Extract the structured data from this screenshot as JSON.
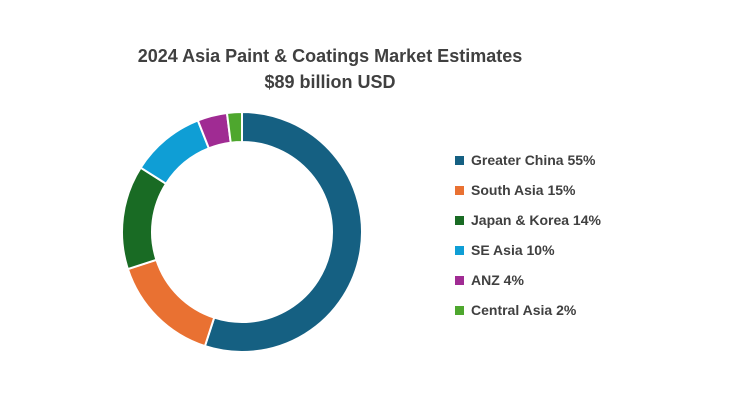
{
  "chart_data": {
    "type": "pie",
    "variant": "donut",
    "title": "2024 Asia Paint & Coatings Market Estimates",
    "subtitle": "$89 billion USD",
    "legend_position": "right",
    "slices": [
      {
        "label": "Greater China 55%",
        "name": "Greater China",
        "value": 55,
        "color": "#156082"
      },
      {
        "label": "South Asia 15%",
        "name": "South Asia",
        "value": 15,
        "color": "#E97132"
      },
      {
        "label": "Japan & Korea 14%",
        "name": "Japan & Korea",
        "value": 14,
        "color": "#196B24"
      },
      {
        "label": "SE Asia 10%",
        "name": "SE Asia",
        "value": 10,
        "color": "#0F9ED5"
      },
      {
        "label": "ANZ 4%",
        "name": "ANZ",
        "value": 4,
        "color": "#A02B93"
      },
      {
        "label": "Central Asia 2%",
        "name": "Central Asia",
        "value": 2,
        "color": "#4EA72E"
      }
    ]
  }
}
